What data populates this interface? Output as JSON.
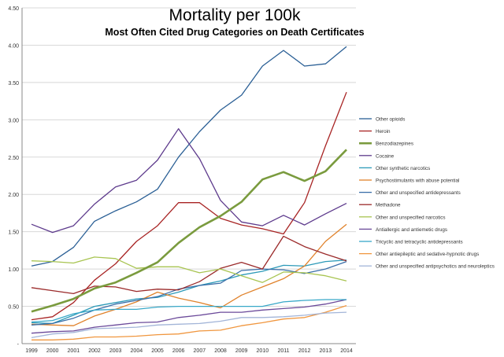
{
  "chart_data": {
    "type": "line",
    "title": "Mortality per 100k",
    "subtitle": "Most Often Cited Drug Categories on Death Certificates",
    "xlabel": "",
    "ylabel": "",
    "x": [
      "1999",
      "2000",
      "2001",
      "2002",
      "2003",
      "2004",
      "2005",
      "2006",
      "2007",
      "2008",
      "2009",
      "2010",
      "2011",
      "2012",
      "2013",
      "2014"
    ],
    "ylim": [
      0,
      4.5
    ],
    "yticks": [
      "-",
      "0.50",
      "1.00",
      "1.50",
      "2.00",
      "2.50",
      "3.00",
      "3.50",
      "4.00",
      "4.50"
    ],
    "grid": "horizontal",
    "legend_position": "right",
    "series": [
      {
        "name": "Other opioids",
        "color": "#2a5f95",
        "values": [
          1.04,
          1.1,
          1.29,
          1.64,
          1.78,
          1.9,
          2.07,
          2.5,
          2.84,
          3.13,
          3.33,
          3.72,
          3.93,
          3.72,
          3.75,
          3.98
        ]
      },
      {
        "name": "Heroin",
        "color": "#a82424",
        "values": [
          0.32,
          0.36,
          0.55,
          0.85,
          1.07,
          1.37,
          1.58,
          1.89,
          1.89,
          1.68,
          1.59,
          1.54,
          1.47,
          1.89,
          2.65,
          3.37
        ]
      },
      {
        "name": "Benzodiazepines",
        "color": "#7a9b3e",
        "bold": true,
        "values": [
          0.43,
          0.51,
          0.6,
          0.74,
          0.82,
          0.95,
          1.09,
          1.35,
          1.56,
          1.71,
          1.9,
          2.2,
          2.3,
          2.18,
          2.31,
          2.6
        ]
      },
      {
        "name": "Cocaine",
        "color": "#5d3a8c",
        "values": [
          1.6,
          1.49,
          1.58,
          1.87,
          2.1,
          2.19,
          2.46,
          2.88,
          2.48,
          1.92,
          1.63,
          1.58,
          1.72,
          1.59,
          1.74,
          1.88
        ]
      },
      {
        "name": "Other synthetic narcotics",
        "color": "#2d9ab8",
        "values": [
          0.28,
          0.27,
          0.38,
          0.5,
          0.55,
          0.6,
          0.62,
          0.69,
          0.78,
          0.84,
          0.92,
          0.97,
          1.05,
          1.04,
          1.1,
          1.12
        ]
      },
      {
        "name": "Psychostimulants with abuse potential",
        "color": "#e0822b",
        "values": [
          0.26,
          0.25,
          0.24,
          0.37,
          0.46,
          0.56,
          0.69,
          0.61,
          0.55,
          0.48,
          0.65,
          0.76,
          0.87,
          1.04,
          1.37,
          1.6
        ]
      },
      {
        "name": "Other and unspecified antidepressants",
        "color": "#3a6ea8",
        "values": [
          0.25,
          0.27,
          0.34,
          0.45,
          0.53,
          0.58,
          0.63,
          0.73,
          0.78,
          0.81,
          0.98,
          1.0,
          0.99,
          0.94,
          1.0,
          1.1
        ]
      },
      {
        "name": "Methadone",
        "color": "#9b2a2a",
        "values": [
          0.75,
          0.71,
          0.67,
          0.77,
          0.76,
          0.7,
          0.73,
          0.72,
          0.83,
          1.01,
          1.09,
          1.0,
          1.44,
          1.3,
          1.2,
          1.11
        ]
      },
      {
        "name": "Other and unspecified narcotics",
        "color": "#a8c451",
        "values": [
          1.11,
          1.1,
          1.08,
          1.16,
          1.14,
          1.01,
          1.03,
          1.03,
          0.95,
          1.0,
          0.91,
          0.82,
          0.96,
          0.95,
          0.91,
          0.84
        ]
      },
      {
        "name": "Antiallergic and antiemetic drugs",
        "color": "#6b4a9a",
        "values": [
          0.14,
          0.16,
          0.17,
          0.22,
          0.25,
          0.28,
          0.29,
          0.35,
          0.38,
          0.42,
          0.42,
          0.45,
          0.47,
          0.49,
          0.53,
          0.59
        ]
      },
      {
        "name": "Tricyclic and tetracyclic antidepressants",
        "color": "#38a8c8",
        "values": [
          0.29,
          0.31,
          0.4,
          0.45,
          0.46,
          0.46,
          0.49,
          0.5,
          0.5,
          0.5,
          0.5,
          0.5,
          0.56,
          0.58,
          0.59,
          0.59
        ]
      },
      {
        "name": "Other antiepileptic and sedative-hypnotic drugs",
        "color": "#f0963e",
        "values": [
          0.05,
          0.05,
          0.06,
          0.09,
          0.09,
          0.1,
          0.12,
          0.13,
          0.17,
          0.18,
          0.24,
          0.28,
          0.33,
          0.35,
          0.42,
          0.51
        ]
      },
      {
        "name": "Other and unspecified antipsychotics and neuroleptics",
        "color": "#a3b5d8",
        "values": [
          0.08,
          0.13,
          0.15,
          0.2,
          0.21,
          0.22,
          0.25,
          0.26,
          0.27,
          0.3,
          0.35,
          0.35,
          0.36,
          0.38,
          0.41,
          0.42
        ]
      }
    ]
  }
}
